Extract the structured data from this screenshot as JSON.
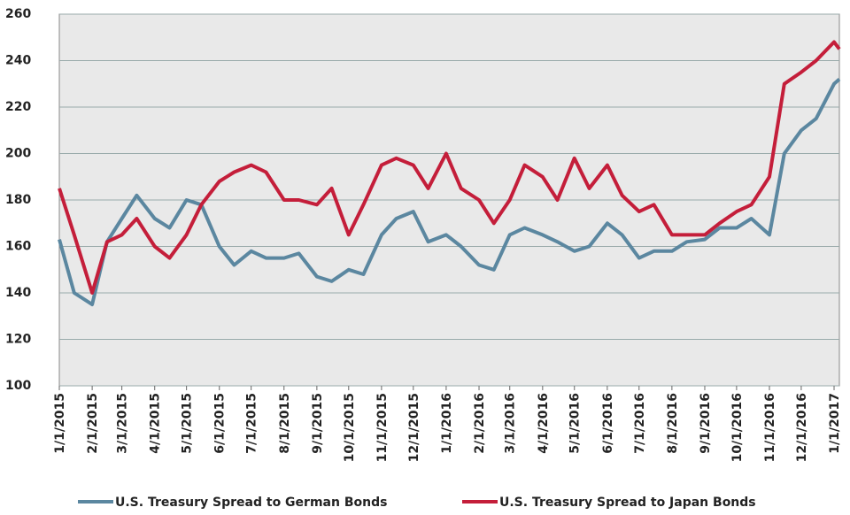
{
  "chart_data": {
    "type": "line",
    "x": [
      "1/1/2015",
      "1/15/2015",
      "2/1/2015",
      "2/15/2015",
      "3/1/2015",
      "3/15/2015",
      "4/1/2015",
      "4/15/2015",
      "5/1/2015",
      "5/15/2015",
      "6/1/2015",
      "6/15/2015",
      "7/1/2015",
      "7/15/2015",
      "8/1/2015",
      "8/15/2015",
      "9/1/2015",
      "9/15/2015",
      "10/1/2015",
      "10/15/2015",
      "11/1/2015",
      "11/15/2015",
      "12/1/2015",
      "12/15/2015",
      "1/1/2016",
      "1/15/2016",
      "2/1/2016",
      "2/15/2016",
      "3/1/2016",
      "3/15/2016",
      "4/1/2016",
      "4/15/2016",
      "5/1/2016",
      "5/15/2016",
      "6/1/2016",
      "6/15/2016",
      "7/1/2016",
      "7/15/2016",
      "8/1/2016",
      "8/15/2016",
      "9/1/2016",
      "9/15/2016",
      "10/1/2016",
      "10/15/2016",
      "11/1/2016",
      "11/15/2016",
      "12/1/2016",
      "12/15/2016",
      "1/1/2017",
      "1/6/2017"
    ],
    "series": [
      {
        "name": "U.S. Treasury Spread to German Bonds",
        "color": "#5b87a0",
        "values": [
          163,
          140,
          135,
          162,
          172,
          182,
          172,
          168,
          180,
          178,
          160,
          152,
          158,
          155,
          155,
          157,
          147,
          145,
          150,
          148,
          165,
          172,
          175,
          162,
          165,
          160,
          152,
          150,
          165,
          168,
          165,
          162,
          158,
          160,
          170,
          165,
          155,
          158,
          158,
          162,
          163,
          168,
          168,
          172,
          165,
          200,
          210,
          215,
          230,
          232
        ]
      },
      {
        "name": "U.S. Treasury Spread to Japan Bonds",
        "color": "#c41e3a",
        "values": [
          185,
          165,
          140,
          162,
          165,
          172,
          160,
          155,
          165,
          178,
          188,
          192,
          195,
          192,
          180,
          180,
          178,
          185,
          165,
          178,
          195,
          198,
          195,
          185,
          200,
          185,
          180,
          170,
          180,
          195,
          190,
          180,
          198,
          185,
          195,
          182,
          175,
          178,
          165,
          165,
          165,
          170,
          175,
          178,
          190,
          230,
          235,
          240,
          248,
          245
        ]
      }
    ],
    "xlim": [
      "1/1/2015",
      "1/6/2017"
    ],
    "xticks": [
      "1/1/2015",
      "2/1/2015",
      "3/1/2015",
      "4/1/2015",
      "5/1/2015",
      "6/1/2015",
      "7/1/2015",
      "8/1/2015",
      "9/1/2015",
      "10/1/2015",
      "11/1/2015",
      "12/1/2015",
      "1/1/2016",
      "2/1/2016",
      "3/1/2016",
      "4/1/2016",
      "5/1/2016",
      "6/1/2016",
      "7/1/2016",
      "8/1/2016",
      "9/1/2016",
      "10/1/2016",
      "11/1/2016",
      "12/1/2016",
      "1/1/2017"
    ],
    "ylim": [
      100,
      260
    ],
    "yticks": [
      100,
      120,
      140,
      160,
      180,
      200,
      220,
      240,
      260
    ],
    "grid": true
  }
}
